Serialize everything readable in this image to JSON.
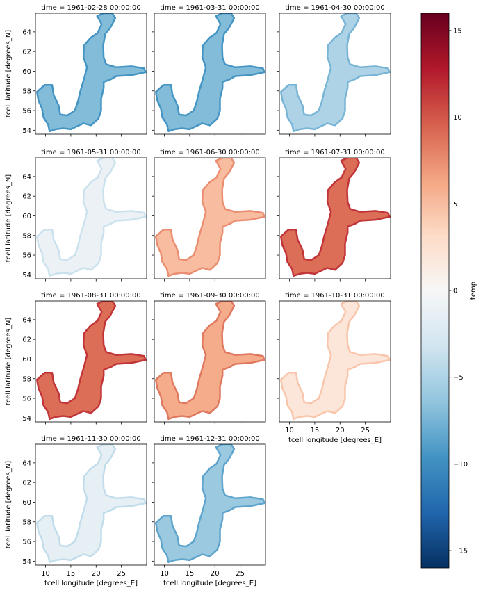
{
  "chart_data": {
    "type": "heatmap",
    "variable": "temp",
    "colormap": "RdBu_r",
    "clim": [
      -16,
      16
    ],
    "colorbar": {
      "label": "temp",
      "ticks": [
        -15,
        -10,
        -5,
        0,
        5,
        10,
        15
      ],
      "tick_labels": [
        "−15",
        "−10",
        "−5",
        "0",
        "5",
        "10",
        "15"
      ]
    },
    "xlabel": "tcell longitude [degrees_E]",
    "ylabel": "tcell latitude [degrees_N]",
    "xlim": [
      8,
      30
    ],
    "ylim": [
      53.6,
      65.9
    ],
    "xticks": [
      10,
      15,
      20,
      25
    ],
    "yticks": [
      54,
      56,
      58,
      60,
      62,
      64
    ],
    "panels": [
      {
        "title": "time = 1961-02-28 00:00:00",
        "mean_temp": -7
      },
      {
        "title": "time = 1961-03-31 00:00:00",
        "mean_temp": -7
      },
      {
        "title": "time = 1961-04-30 00:00:00",
        "mean_temp": -5
      },
      {
        "title": "time = 1961-05-31 00:00:00",
        "mean_temp": -1
      },
      {
        "title": "time = 1961-06-30 00:00:00",
        "mean_temp": 5
      },
      {
        "title": "time = 1961-07-31 00:00:00",
        "mean_temp": 9
      },
      {
        "title": "time = 1961-08-31 00:00:00",
        "mean_temp": 9
      },
      {
        "title": "time = 1961-09-30 00:00:00",
        "mean_temp": 6
      },
      {
        "title": "time = 1961-10-31 00:00:00",
        "mean_temp": 2
      },
      {
        "title": "time = 1961-11-30 00:00:00",
        "mean_temp": -1.5
      },
      {
        "title": "time = 1961-12-31 00:00:00",
        "mean_temp": -6
      }
    ]
  }
}
